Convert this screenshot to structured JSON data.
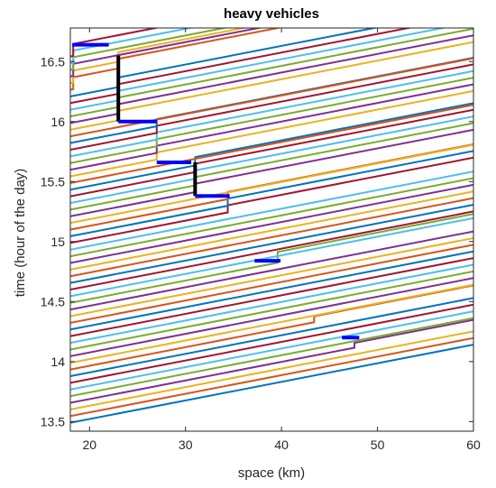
{
  "chart_data": {
    "type": "line",
    "title": "heavy vehicles",
    "xlabel": "space (km)",
    "ylabel": "time (hour of the day)",
    "xlim": [
      18,
      60
    ],
    "ylim": [
      13.42,
      16.78
    ],
    "x_ticks": [
      20,
      30,
      40,
      50,
      60
    ],
    "y_ticks": [
      13.5,
      14,
      14.5,
      15,
      15.5,
      16,
      16.5
    ],
    "x_tick_labels": [
      "20",
      "30",
      "40",
      "50",
      "60"
    ],
    "y_tick_labels": [
      "13.5",
      "14",
      "14.5",
      "15",
      "15.5",
      "16",
      "16.5"
    ],
    "grid": false,
    "trajectory_set": {
      "count": 56,
      "start_time_first": 13.49,
      "start_time_spacing": 0.0555,
      "free_flow_slope_hours_per_km": 0.0155,
      "palette": [
        "#0072BD",
        "#D95319",
        "#EDB120",
        "#7E2F8E",
        "#77AC30",
        "#4DBEEE",
        "#A2142F"
      ]
    },
    "queues": [
      {
        "x_start": 47.6,
        "x_end": 49.0,
        "t_start": 14.07,
        "t_end": 14.13,
        "wait_hours": 0.04
      },
      {
        "x_start": 43.4,
        "x_end": 45.0,
        "t_start": 14.28,
        "t_end": 14.37,
        "wait_hours": 0.05
      },
      {
        "x_start": 39.6,
        "x_end": 41.0,
        "t_start": 14.78,
        "t_end": 14.84,
        "wait_hours": 0.09
      },
      {
        "x_start": 34.4,
        "x_end": 37.5,
        "t_start": 15.2,
        "t_end": 15.4,
        "wait_hours": 0.06
      },
      {
        "x_start": 31.0,
        "x_end": 33.0,
        "t_start": 15.38,
        "t_end": 15.66,
        "wait_hours": 0.07
      },
      {
        "x_start": 27.0,
        "x_end": 30.6,
        "t_start": 15.68,
        "t_end": 16.0,
        "wait_hours": 0.06
      },
      {
        "x_start": 23.0,
        "x_end": 27.0,
        "t_start": 16.0,
        "t_end": 16.55,
        "wait_hours": 0.08
      },
      {
        "x_start": 18.3,
        "x_end": 22.0,
        "t_start": 16.25,
        "t_end": 16.64,
        "wait_hours": 0.1
      }
    ],
    "annotations": {
      "blue_segments": [
        {
          "x1": 18.2,
          "x2": 22.0,
          "y": 16.64
        },
        {
          "x1": 23.0,
          "x2": 27.0,
          "y": 16.0
        },
        {
          "x1": 27.0,
          "x2": 30.6,
          "y": 15.66
        },
        {
          "x1": 31.0,
          "x2": 34.6,
          "y": 15.38
        },
        {
          "x1": 37.2,
          "x2": 39.9,
          "y": 14.84
        },
        {
          "x1": 46.3,
          "x2": 48.1,
          "y": 14.2
        }
      ],
      "black_segments": [
        {
          "x": 23.0,
          "y1": 16.0,
          "y2": 16.55
        },
        {
          "x": 31.0,
          "y1": 15.38,
          "y2": 15.66
        }
      ],
      "blue_color": "#0000FF",
      "black_color": "#000000"
    }
  }
}
